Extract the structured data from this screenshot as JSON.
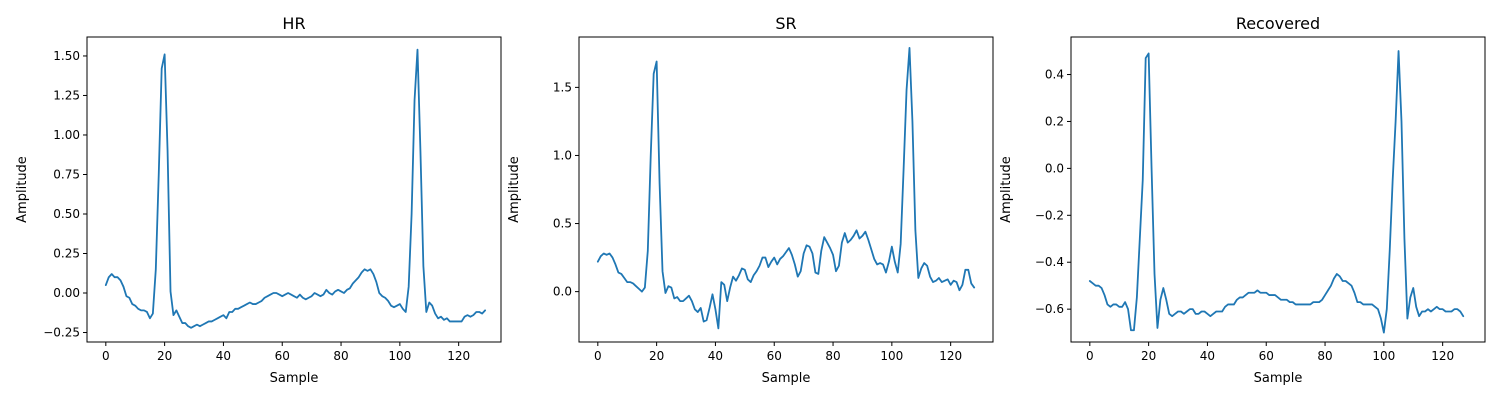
{
  "chart_data": [
    {
      "type": "line",
      "title": "HR",
      "xlabel": "Sample",
      "ylabel": "Amplitude",
      "xlim": [
        -6.4,
        134.4
      ],
      "ylim": [
        -0.31,
        1.62
      ],
      "xticks": [
        0,
        20,
        40,
        60,
        80,
        100,
        120
      ],
      "yticks": [
        -0.25,
        0.0,
        0.25,
        0.5,
        0.75,
        1.0,
        1.25,
        1.5
      ],
      "ytick_labels": [
        "−0.25",
        "0.00",
        "0.25",
        "0.50",
        "0.75",
        "1.00",
        "1.25",
        "1.50"
      ],
      "grid": false,
      "color": "#1f77b4",
      "y": [
        0.05,
        0.1,
        0.12,
        0.1,
        0.1,
        0.08,
        0.04,
        -0.02,
        -0.03,
        -0.07,
        -0.08,
        -0.1,
        -0.11,
        -0.11,
        -0.12,
        -0.16,
        -0.13,
        0.15,
        0.75,
        1.42,
        1.51,
        0.9,
        0.01,
        -0.14,
        -0.11,
        -0.15,
        -0.19,
        -0.19,
        -0.21,
        -0.22,
        -0.21,
        -0.2,
        -0.21,
        -0.2,
        -0.19,
        -0.18,
        -0.18,
        -0.17,
        -0.16,
        -0.15,
        -0.14,
        -0.16,
        -0.12,
        -0.12,
        -0.1,
        -0.1,
        -0.09,
        -0.08,
        -0.07,
        -0.06,
        -0.07,
        -0.07,
        -0.06,
        -0.05,
        -0.03,
        -0.02,
        -0.01,
        0.0,
        0.0,
        -0.01,
        -0.02,
        -0.01,
        0.0,
        -0.01,
        -0.02,
        -0.03,
        -0.01,
        -0.03,
        -0.04,
        -0.03,
        -0.02,
        0.0,
        -0.01,
        -0.02,
        -0.01,
        0.02,
        0.0,
        -0.01,
        0.01,
        0.02,
        0.01,
        0.0,
        0.02,
        0.03,
        0.06,
        0.08,
        0.1,
        0.13,
        0.15,
        0.14,
        0.15,
        0.12,
        0.07,
        0.0,
        -0.02,
        -0.03,
        -0.05,
        -0.08,
        -0.09,
        -0.08,
        -0.07,
        -0.1,
        -0.12,
        0.04,
        0.5,
        1.22,
        1.54,
        0.9,
        0.17,
        -0.12,
        -0.06,
        -0.08,
        -0.13,
        -0.16,
        -0.15,
        -0.17,
        -0.16,
        -0.18,
        -0.18,
        -0.18,
        -0.18,
        -0.18,
        -0.15,
        -0.14,
        -0.15,
        -0.14,
        -0.12,
        -0.12,
        -0.13,
        -0.11
      ]
    },
    {
      "type": "line",
      "title": "SR",
      "xlabel": "Sample",
      "ylabel": "Amplitude",
      "xlim": [
        -6.4,
        134.4
      ],
      "ylim": [
        -0.37,
        1.87
      ],
      "xticks": [
        0,
        20,
        40,
        60,
        80,
        100,
        120
      ],
      "yticks": [
        0.0,
        0.5,
        1.0,
        1.5
      ],
      "ytick_labels": [
        "0.0",
        "0.5",
        "1.0",
        "1.5"
      ],
      "grid": false,
      "color": "#1f77b4",
      "y": [
        0.22,
        0.26,
        0.28,
        0.27,
        0.28,
        0.25,
        0.2,
        0.14,
        0.13,
        0.1,
        0.07,
        0.07,
        0.06,
        0.04,
        0.02,
        0.0,
        0.03,
        0.3,
        1.0,
        1.6,
        1.69,
        0.8,
        0.15,
        -0.01,
        0.04,
        0.03,
        -0.05,
        -0.04,
        -0.07,
        -0.07,
        -0.05,
        -0.03,
        -0.07,
        -0.13,
        -0.15,
        -0.12,
        -0.22,
        -0.21,
        -0.12,
        -0.02,
        -0.13,
        -0.27,
        0.07,
        0.05,
        -0.07,
        0.03,
        0.11,
        0.08,
        0.12,
        0.17,
        0.16,
        0.09,
        0.07,
        0.12,
        0.15,
        0.19,
        0.25,
        0.25,
        0.18,
        0.22,
        0.25,
        0.2,
        0.24,
        0.26,
        0.29,
        0.32,
        0.27,
        0.2,
        0.11,
        0.15,
        0.28,
        0.34,
        0.33,
        0.28,
        0.14,
        0.13,
        0.3,
        0.4,
        0.36,
        0.32,
        0.27,
        0.15,
        0.19,
        0.36,
        0.43,
        0.36,
        0.38,
        0.41,
        0.45,
        0.39,
        0.41,
        0.44,
        0.38,
        0.31,
        0.24,
        0.2,
        0.21,
        0.2,
        0.14,
        0.22,
        0.33,
        0.22,
        0.14,
        0.35,
        0.9,
        1.48,
        1.79,
        1.25,
        0.45,
        0.1,
        0.17,
        0.21,
        0.19,
        0.11,
        0.07,
        0.08,
        0.1,
        0.07,
        0.08,
        0.09,
        0.05,
        0.08,
        0.07,
        0.01,
        0.05,
        0.16,
        0.16,
        0.06,
        0.03
      ]
    },
    {
      "type": "line",
      "title": "Recovered",
      "xlabel": "Sample",
      "ylabel": "Amplitude",
      "xlim": [
        -6.4,
        134.4
      ],
      "ylim": [
        -0.74,
        0.56
      ],
      "xticks": [
        0,
        20,
        40,
        60,
        80,
        100,
        120
      ],
      "yticks": [
        -0.6,
        -0.4,
        -0.2,
        0.0,
        0.2,
        0.4
      ],
      "ytick_labels": [
        "−0.6",
        "−0.4",
        "−0.2",
        "0.0",
        "0.2",
        "0.4"
      ],
      "grid": false,
      "color": "#1f77b4",
      "y": [
        -0.48,
        -0.49,
        -0.5,
        -0.5,
        -0.51,
        -0.54,
        -0.58,
        -0.59,
        -0.58,
        -0.58,
        -0.59,
        -0.59,
        -0.57,
        -0.6,
        -0.69,
        -0.69,
        -0.55,
        -0.3,
        -0.05,
        0.47,
        0.49,
        0.0,
        -0.45,
        -0.68,
        -0.56,
        -0.51,
        -0.56,
        -0.62,
        -0.63,
        -0.62,
        -0.61,
        -0.61,
        -0.62,
        -0.61,
        -0.6,
        -0.6,
        -0.62,
        -0.62,
        -0.61,
        -0.61,
        -0.62,
        -0.63,
        -0.62,
        -0.61,
        -0.61,
        -0.61,
        -0.59,
        -0.58,
        -0.58,
        -0.58,
        -0.56,
        -0.55,
        -0.55,
        -0.54,
        -0.53,
        -0.53,
        -0.53,
        -0.52,
        -0.53,
        -0.53,
        -0.53,
        -0.54,
        -0.54,
        -0.54,
        -0.55,
        -0.56,
        -0.56,
        -0.56,
        -0.57,
        -0.57,
        -0.58,
        -0.58,
        -0.58,
        -0.58,
        -0.58,
        -0.58,
        -0.57,
        -0.57,
        -0.57,
        -0.56,
        -0.54,
        -0.52,
        -0.5,
        -0.47,
        -0.45,
        -0.46,
        -0.48,
        -0.48,
        -0.49,
        -0.5,
        -0.53,
        -0.57,
        -0.57,
        -0.58,
        -0.58,
        -0.58,
        -0.58,
        -0.59,
        -0.6,
        -0.64,
        -0.7,
        -0.6,
        -0.35,
        -0.05,
        0.2,
        0.5,
        0.2,
        -0.3,
        -0.64,
        -0.55,
        -0.51,
        -0.59,
        -0.63,
        -0.61,
        -0.61,
        -0.6,
        -0.61,
        -0.6,
        -0.59,
        -0.6,
        -0.6,
        -0.61,
        -0.61,
        -0.61,
        -0.6,
        -0.6,
        -0.61,
        -0.63
      ]
    }
  ]
}
